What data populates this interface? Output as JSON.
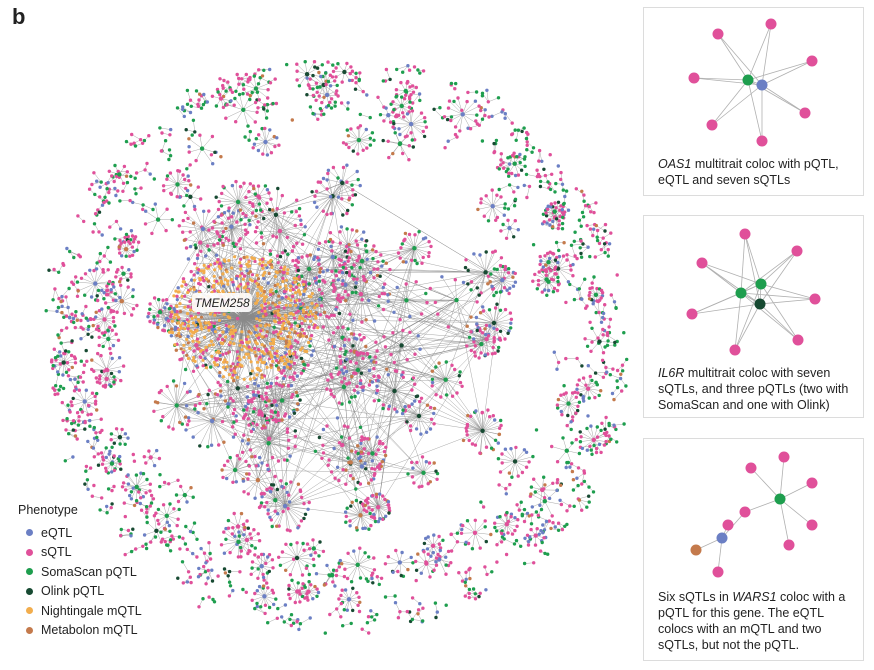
{
  "panel_label": "b",
  "hub_label": "TMEM258",
  "colors": {
    "eQTL": "#6b7fc4",
    "sQTL": "#e0509a",
    "SomaScan": "#1e9e4e",
    "Olink": "#174a32",
    "Nightingale": "#f2ad4d",
    "Metabolon": "#c47a4c",
    "edge": "#8a8a8a"
  },
  "legend": {
    "title": "Phenotype",
    "items": [
      {
        "label": "eQTL",
        "color": "#6b7fc4"
      },
      {
        "label": "sQTL",
        "color": "#e0509a"
      },
      {
        "label": "SomaScan pQTL",
        "color": "#1e9e4e"
      },
      {
        "label": "Olink pQTL",
        "color": "#174a32"
      },
      {
        "label": "Nightingale mQTL",
        "color": "#f2ad4d"
      },
      {
        "label": "Metabolon mQTL",
        "color": "#c47a4c"
      }
    ]
  },
  "insets": [
    {
      "gene": "OAS1",
      "caption_rest": " multitrait coloc with pQTL, eQTL and seven sQTLs"
    },
    {
      "gene": "IL6R",
      "caption_rest": " multitrait coloc with seven sQTLs, and three pQTLs (two with SomaScan and one with Olink)"
    },
    {
      "caption_pre": "Six sQTLs in ",
      "gene": "WARS1",
      "caption_rest": " coloc with a pQTL for this gene. The eQTL colocs with an mQTL and two sQTLs, but not the pQTL."
    }
  ]
}
